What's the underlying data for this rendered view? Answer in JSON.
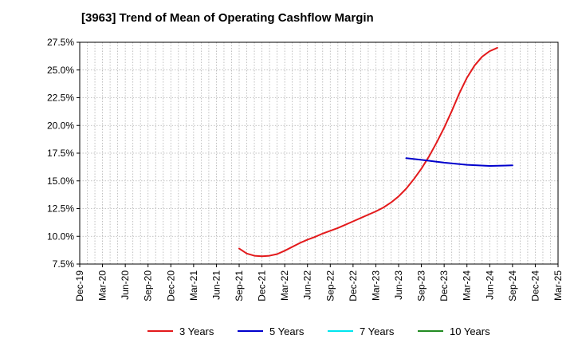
{
  "chart_data": {
    "type": "line",
    "title": "[3963]  Trend of Mean of Operating Cashflow Margin",
    "xlabel": "",
    "ylabel": "",
    "x_ticks": [
      "Dec-19",
      "Mar-20",
      "Jun-20",
      "Sep-20",
      "Dec-20",
      "Mar-21",
      "Jun-21",
      "Sep-21",
      "Dec-21",
      "Mar-22",
      "Jun-22",
      "Sep-22",
      "Dec-22",
      "Mar-23",
      "Jun-23",
      "Sep-23",
      "Dec-23",
      "Mar-24",
      "Jun-24",
      "Sep-24",
      "Dec-24",
      "Mar-25"
    ],
    "y_ticks": [
      "7.5%",
      "10.0%",
      "12.5%",
      "15.0%",
      "17.5%",
      "20.0%",
      "22.5%",
      "25.0%",
      "27.5%"
    ],
    "ylim": [
      7.5,
      27.5
    ],
    "grid": true,
    "legend_position": "bottom",
    "series": [
      {
        "name": "3 Years",
        "color": "#e31a1c",
        "points": [
          [
            "Sep-21",
            8.9
          ],
          [
            "Oct-21",
            8.45
          ],
          [
            "Nov-21",
            8.25
          ],
          [
            "Dec-21",
            8.2
          ],
          [
            "Jan-22",
            8.25
          ],
          [
            "Feb-22",
            8.4
          ],
          [
            "Mar-22",
            8.7
          ],
          [
            "Apr-22",
            9.05
          ],
          [
            "May-22",
            9.4
          ],
          [
            "Jun-22",
            9.7
          ],
          [
            "Jul-22",
            9.95
          ],
          [
            "Aug-22",
            10.25
          ],
          [
            "Sep-22",
            10.5
          ],
          [
            "Oct-22",
            10.75
          ],
          [
            "Nov-22",
            11.05
          ],
          [
            "Dec-22",
            11.35
          ],
          [
            "Jan-23",
            11.65
          ],
          [
            "Feb-23",
            11.95
          ],
          [
            "Mar-23",
            12.25
          ],
          [
            "Apr-23",
            12.6
          ],
          [
            "May-23",
            13.05
          ],
          [
            "Jun-23",
            13.6
          ],
          [
            "Jul-23",
            14.3
          ],
          [
            "Aug-23",
            15.15
          ],
          [
            "Sep-23",
            16.1
          ],
          [
            "Oct-23",
            17.2
          ],
          [
            "Nov-23",
            18.45
          ],
          [
            "Dec-23",
            19.8
          ],
          [
            "Jan-24",
            21.3
          ],
          [
            "Feb-24",
            22.9
          ],
          [
            "Mar-24",
            24.3
          ],
          [
            "Apr-24",
            25.4
          ],
          [
            "May-24",
            26.2
          ],
          [
            "Jun-24",
            26.7
          ],
          [
            "Jul-24",
            27.0
          ]
        ]
      },
      {
        "name": "5 Years",
        "color": "#0000cc",
        "points": [
          [
            "Jul-23",
            17.05
          ],
          [
            "Sep-23",
            16.9
          ],
          [
            "Dec-23",
            16.65
          ],
          [
            "Mar-24",
            16.45
          ],
          [
            "Jun-24",
            16.35
          ],
          [
            "Sep-24",
            16.4
          ]
        ]
      },
      {
        "name": "7 Years",
        "color": "#00e5ee",
        "points": []
      },
      {
        "name": "10 Years",
        "color": "#228b22",
        "points": []
      }
    ]
  }
}
